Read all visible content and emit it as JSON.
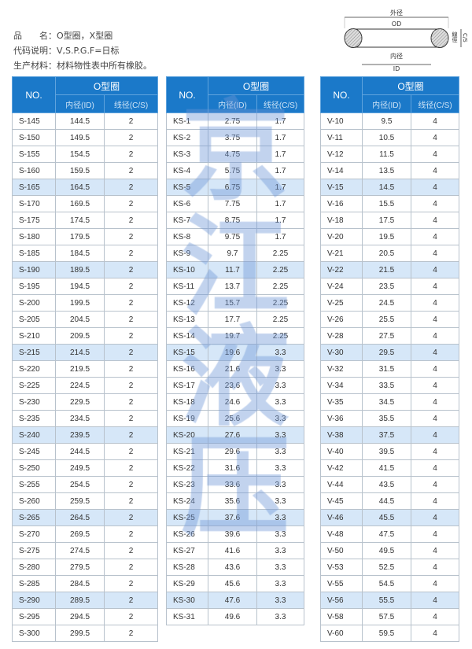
{
  "info": {
    "line1": "品　　名：O型圈，X型圈",
    "line2": "代码说明：V,S.P.G.F=日标",
    "line3": "生产材料：材料物性表中所有橡胶。"
  },
  "diagram": {
    "od_cn": "外径",
    "od": "OD",
    "id_cn": "内径",
    "id": "ID",
    "cs_cn": "線徑",
    "cs": "C/S"
  },
  "watermark": [
    "京",
    "江",
    "液",
    "压"
  ],
  "table_header": {
    "no": "NO.",
    "group": "O型圈",
    "id": "内径(ID)",
    "cs": "线径(C/S)"
  },
  "colors": {
    "header": "#1b79c9",
    "highlight": "#d6e7f8"
  },
  "tables": [
    {
      "rows": [
        [
          "S-145",
          "144.5",
          "2"
        ],
        [
          "S-150",
          "149.5",
          "2"
        ],
        [
          "S-155",
          "154.5",
          "2"
        ],
        [
          "S-160",
          "159.5",
          "2"
        ],
        [
          "S-165",
          "164.5",
          "2"
        ],
        [
          "S-170",
          "169.5",
          "2"
        ],
        [
          "S-175",
          "174.5",
          "2"
        ],
        [
          "S-180",
          "179.5",
          "2"
        ],
        [
          "S-185",
          "184.5",
          "2"
        ],
        [
          "S-190",
          "189.5",
          "2"
        ],
        [
          "S-195",
          "194.5",
          "2"
        ],
        [
          "S-200",
          "199.5",
          "2"
        ],
        [
          "S-205",
          "204.5",
          "2"
        ],
        [
          "S-210",
          "209.5",
          "2"
        ],
        [
          "S-215",
          "214.5",
          "2"
        ],
        [
          "S-220",
          "219.5",
          "2"
        ],
        [
          "S-225",
          "224.5",
          "2"
        ],
        [
          "S-230",
          "229.5",
          "2"
        ],
        [
          "S-235",
          "234.5",
          "2"
        ],
        [
          "S-240",
          "239.5",
          "2"
        ],
        [
          "S-245",
          "244.5",
          "2"
        ],
        [
          "S-250",
          "249.5",
          "2"
        ],
        [
          "S-255",
          "254.5",
          "2"
        ],
        [
          "S-260",
          "259.5",
          "2"
        ],
        [
          "S-265",
          "264.5",
          "2"
        ],
        [
          "S-270",
          "269.5",
          "2"
        ],
        [
          "S-275",
          "274.5",
          "2"
        ],
        [
          "S-280",
          "279.5",
          "2"
        ],
        [
          "S-285",
          "284.5",
          "2"
        ],
        [
          "S-290",
          "289.5",
          "2"
        ],
        [
          "S-295",
          "294.5",
          "2"
        ],
        [
          "S-300",
          "299.5",
          "2"
        ]
      ]
    },
    {
      "rows": [
        [
          "KS-1",
          "2.75",
          "1.7"
        ],
        [
          "KS-2",
          "3.75",
          "1.7"
        ],
        [
          "KS-3",
          "4.75",
          "1.7"
        ],
        [
          "KS-4",
          "5.75",
          "1.7"
        ],
        [
          "KS-5",
          "6.75",
          "1.7"
        ],
        [
          "KS-6",
          "7.75",
          "1.7"
        ],
        [
          "KS-7",
          "8.75",
          "1.7"
        ],
        [
          "KS-8",
          "9.75",
          "1.7"
        ],
        [
          "KS-9",
          "9.7",
          "2.25"
        ],
        [
          "KS-10",
          "11.7",
          "2.25"
        ],
        [
          "KS-11",
          "13.7",
          "2.25"
        ],
        [
          "KS-12",
          "15.7",
          "2.25"
        ],
        [
          "KS-13",
          "17.7",
          "2.25"
        ],
        [
          "KS-14",
          "19.7",
          "2.25"
        ],
        [
          "KS-15",
          "19.6",
          "3.3"
        ],
        [
          "KS-16",
          "21.6",
          "3.3"
        ],
        [
          "KS-17",
          "23.6",
          "3.3"
        ],
        [
          "KS-18",
          "24.6",
          "3.3"
        ],
        [
          "KS-19",
          "25.6",
          "3.3"
        ],
        [
          "KS-20",
          "27.6",
          "3.3"
        ],
        [
          "KS-21",
          "29.6",
          "3.3"
        ],
        [
          "KS-22",
          "31.6",
          "3.3"
        ],
        [
          "KS-23",
          "33.6",
          "3.3"
        ],
        [
          "KS-24",
          "35.6",
          "3.3"
        ],
        [
          "KS-25",
          "37.6",
          "3.3"
        ],
        [
          "KS-26",
          "39.6",
          "3.3"
        ],
        [
          "KS-27",
          "41.6",
          "3.3"
        ],
        [
          "KS-28",
          "43.6",
          "3.3"
        ],
        [
          "KS-29",
          "45.6",
          "3.3"
        ],
        [
          "KS-30",
          "47.6",
          "3.3"
        ],
        [
          "KS-31",
          "49.6",
          "3.3"
        ]
      ]
    },
    {
      "rows": [
        [
          "V-10",
          "9.5",
          "4"
        ],
        [
          "V-11",
          "10.5",
          "4"
        ],
        [
          "V-12",
          "11.5",
          "4"
        ],
        [
          "V-14",
          "13.5",
          "4"
        ],
        [
          "V-15",
          "14.5",
          "4"
        ],
        [
          "V-16",
          "15.5",
          "4"
        ],
        [
          "V-18",
          "17.5",
          "4"
        ],
        [
          "V-20",
          "19.5",
          "4"
        ],
        [
          "V-21",
          "20.5",
          "4"
        ],
        [
          "V-22",
          "21.5",
          "4"
        ],
        [
          "V-24",
          "23.5",
          "4"
        ],
        [
          "V-25",
          "24.5",
          "4"
        ],
        [
          "V-26",
          "25.5",
          "4"
        ],
        [
          "V-28",
          "27.5",
          "4"
        ],
        [
          "V-30",
          "29.5",
          "4"
        ],
        [
          "V-32",
          "31.5",
          "4"
        ],
        [
          "V-34",
          "33.5",
          "4"
        ],
        [
          "V-35",
          "34.5",
          "4"
        ],
        [
          "V-36",
          "35.5",
          "4"
        ],
        [
          "V-38",
          "37.5",
          "4"
        ],
        [
          "V-40",
          "39.5",
          "4"
        ],
        [
          "V-42",
          "41.5",
          "4"
        ],
        [
          "V-44",
          "43.5",
          "4"
        ],
        [
          "V-45",
          "44.5",
          "4"
        ],
        [
          "V-46",
          "45.5",
          "4"
        ],
        [
          "V-48",
          "47.5",
          "4"
        ],
        [
          "V-50",
          "49.5",
          "4"
        ],
        [
          "V-53",
          "52.5",
          "4"
        ],
        [
          "V-55",
          "54.5",
          "4"
        ],
        [
          "V-56",
          "55.5",
          "4"
        ],
        [
          "V-58",
          "57.5",
          "4"
        ],
        [
          "V-60",
          "59.5",
          "4"
        ]
      ]
    }
  ]
}
